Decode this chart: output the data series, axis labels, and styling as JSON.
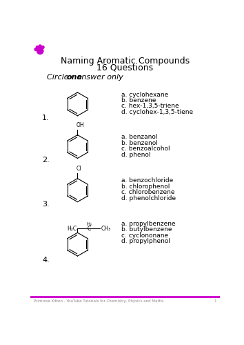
{
  "title_line1": "Naming Aromatic Compounds",
  "title_line2": "16 Questions",
  "instruction_italic": "Circle ",
  "instruction_bold": "one",
  "instruction_end": " answer only",
  "bg_color": "#ffffff",
  "text_color": "#000000",
  "accent_color": "#cc00cc",
  "footer_text": "Primrose Kitten - YouTube Tutorials for Chemistry, Physics and Maths.",
  "footer_page": "1",
  "questions": [
    {
      "num": "1.",
      "options": [
        "a. cyclohexane",
        "b. benzene",
        "c. hex-1,3,5-triene",
        "d. cyclohex-1,3,5-tiene"
      ]
    },
    {
      "num": "2.",
      "options": [
        "a. benzanol",
        "b. benzenol",
        "c. benzoalcohol",
        "d. phenol"
      ]
    },
    {
      "num": "3.",
      "options": [
        "a. benzochloride",
        "b. chlorophenol",
        "c. chlorobenzene",
        "d. phenolchloride"
      ]
    },
    {
      "num": "4.",
      "options": [
        "a. propylbenzene",
        "b. butylbenzene",
        "c. cyclononane",
        "d. propylphenol"
      ]
    }
  ]
}
